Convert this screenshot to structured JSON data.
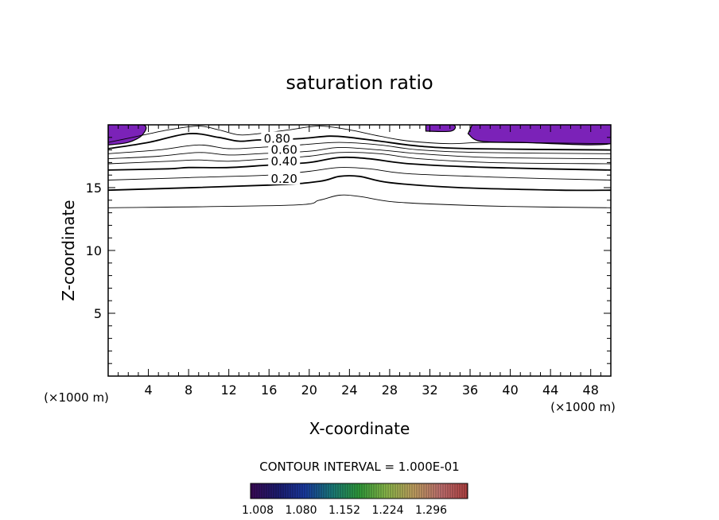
{
  "chart_data": {
    "type": "contour",
    "title": "saturation ratio",
    "xlabel": "X-coordinate",
    "ylabel": "Z-coordinate",
    "x_unit_label": "(×1000 m)",
    "xlim": [
      0,
      50
    ],
    "ylim": [
      0,
      20
    ],
    "x_ticks": [
      4,
      8,
      12,
      16,
      20,
      24,
      28,
      32,
      36,
      40,
      44,
      48
    ],
    "y_ticks": [
      5,
      10,
      15
    ],
    "contour_interval_label": "CONTOUR INTERVAL = 1.000E-01",
    "contour_labels": [
      {
        "text": "0.80",
        "value": 0.8,
        "x": 16.8,
        "z": 18.9
      },
      {
        "text": "0.60",
        "value": 0.6,
        "x": 17.5,
        "z": 18.0
      },
      {
        "text": "0.40",
        "value": 0.4,
        "x": 17.5,
        "z": 17.1
      },
      {
        "text": "0.20",
        "value": 0.2,
        "x": 17.5,
        "z": 15.7
      }
    ],
    "contours": [
      {
        "value": 0.1,
        "bold": false,
        "points": [
          [
            0,
            13.4
          ],
          [
            18,
            13.6
          ],
          [
            21,
            14.0
          ],
          [
            23,
            14.4
          ],
          [
            25,
            14.3
          ],
          [
            28,
            13.9
          ],
          [
            32,
            13.7
          ],
          [
            40,
            13.5
          ],
          [
            50,
            13.4
          ]
        ]
      },
      {
        "value": 0.2,
        "bold": true,
        "points": [
          [
            0,
            14.8
          ],
          [
            16,
            15.2
          ],
          [
            21,
            15.5
          ],
          [
            23,
            15.9
          ],
          [
            25,
            15.9
          ],
          [
            28,
            15.4
          ],
          [
            35,
            15.0
          ],
          [
            45,
            14.8
          ],
          [
            50,
            14.8
          ]
        ]
      },
      {
        "value": 0.3,
        "bold": false,
        "points": [
          [
            0,
            15.6
          ],
          [
            8,
            15.8
          ],
          [
            16,
            16.0
          ],
          [
            20,
            16.3
          ],
          [
            23,
            16.6
          ],
          [
            26,
            16.5
          ],
          [
            30,
            16.1
          ],
          [
            40,
            15.8
          ],
          [
            50,
            15.6
          ]
        ]
      },
      {
        "value": 0.4,
        "bold": true,
        "points": [
          [
            0,
            16.4
          ],
          [
            6,
            16.5
          ],
          [
            8,
            16.6
          ],
          [
            12,
            16.6
          ],
          [
            16,
            16.8
          ],
          [
            20,
            17.0
          ],
          [
            23,
            17.4
          ],
          [
            26,
            17.3
          ],
          [
            30,
            16.9
          ],
          [
            38,
            16.6
          ],
          [
            50,
            16.4
          ]
        ]
      },
      {
        "value": 0.5,
        "bold": false,
        "points": [
          [
            0,
            16.9
          ],
          [
            6,
            17.1
          ],
          [
            9,
            17.2
          ],
          [
            12,
            17.1
          ],
          [
            16,
            17.3
          ],
          [
            20,
            17.5
          ],
          [
            23,
            17.8
          ],
          [
            27,
            17.7
          ],
          [
            31,
            17.3
          ],
          [
            38,
            17.0
          ],
          [
            50,
            16.9
          ]
        ]
      },
      {
        "value": 0.6,
        "bold": false,
        "points": [
          [
            0,
            17.3
          ],
          [
            5,
            17.5
          ],
          [
            9,
            17.8
          ],
          [
            12,
            17.6
          ],
          [
            15,
            17.7
          ],
          [
            20,
            17.9
          ],
          [
            23,
            18.2
          ],
          [
            27,
            18.0
          ],
          [
            31,
            17.7
          ],
          [
            38,
            17.4
          ],
          [
            50,
            17.3
          ]
        ]
      },
      {
        "value": 0.7,
        "bold": false,
        "points": [
          [
            0,
            17.7
          ],
          [
            5,
            18.0
          ],
          [
            9,
            18.4
          ],
          [
            12,
            18.1
          ],
          [
            15,
            18.2
          ],
          [
            19,
            18.4
          ],
          [
            23,
            18.6
          ],
          [
            27,
            18.4
          ],
          [
            31,
            18.0
          ],
          [
            37,
            17.8
          ],
          [
            50,
            17.7
          ]
        ]
      },
      {
        "value": 0.8,
        "bold": true,
        "points": [
          [
            0,
            18.1
          ],
          [
            4,
            18.6
          ],
          [
            8,
            19.3
          ],
          [
            11,
            19.0
          ],
          [
            13,
            18.7
          ],
          [
            15,
            18.8
          ],
          [
            19,
            18.9
          ],
          [
            22,
            19.1
          ],
          [
            24,
            19.0
          ],
          [
            27,
            18.7
          ],
          [
            31,
            18.3
          ],
          [
            36,
            18.1
          ],
          [
            50,
            18.0
          ]
        ]
      },
      {
        "value": 0.9,
        "bold": false,
        "points": [
          [
            0,
            18.6
          ],
          [
            3,
            19.1
          ],
          [
            6,
            19.6
          ],
          [
            9,
            19.9
          ],
          [
            11,
            19.6
          ],
          [
            13,
            19.2
          ],
          [
            15,
            19.3
          ],
          [
            18,
            19.6
          ],
          [
            21,
            19.9
          ],
          [
            24,
            19.6
          ],
          [
            27,
            19.1
          ],
          [
            30,
            18.7
          ],
          [
            34,
            18.5
          ],
          [
            38,
            18.6
          ],
          [
            50,
            18.5
          ]
        ]
      }
    ],
    "shaded_regions": [
      {
        "threshold": ">= 1.0",
        "color": "#7b22b8",
        "points": [
          [
            0,
            20
          ],
          [
            3.5,
            20
          ],
          [
            3.4,
            19.2
          ],
          [
            2,
            18.6
          ],
          [
            0,
            18.4
          ]
        ]
      },
      {
        "threshold": ">= 1.0",
        "color": "#7b22b8",
        "points": [
          [
            31.6,
            20
          ],
          [
            34.3,
            20
          ],
          [
            34.1,
            19.5
          ],
          [
            31.6,
            19.5
          ]
        ]
      },
      {
        "threshold": ">= 1.0",
        "color": "#7b22b8",
        "points": [
          [
            36.2,
            20
          ],
          [
            50,
            20
          ],
          [
            50,
            18.5
          ],
          [
            41,
            18.6
          ],
          [
            37,
            18.7
          ],
          [
            35.8,
            19.3
          ]
        ]
      }
    ],
    "colorbar": {
      "labels": [
        "1.008",
        "1.080",
        "1.152",
        "1.224",
        "1.296"
      ],
      "colors": [
        "#3a0a55",
        "#1c1c70",
        "#1a3aa0",
        "#1a7a7a",
        "#2f9a3a",
        "#8ab84a",
        "#c0a060",
        "#c07070",
        "#b04040"
      ]
    },
    "grid": false,
    "legend": "none"
  }
}
